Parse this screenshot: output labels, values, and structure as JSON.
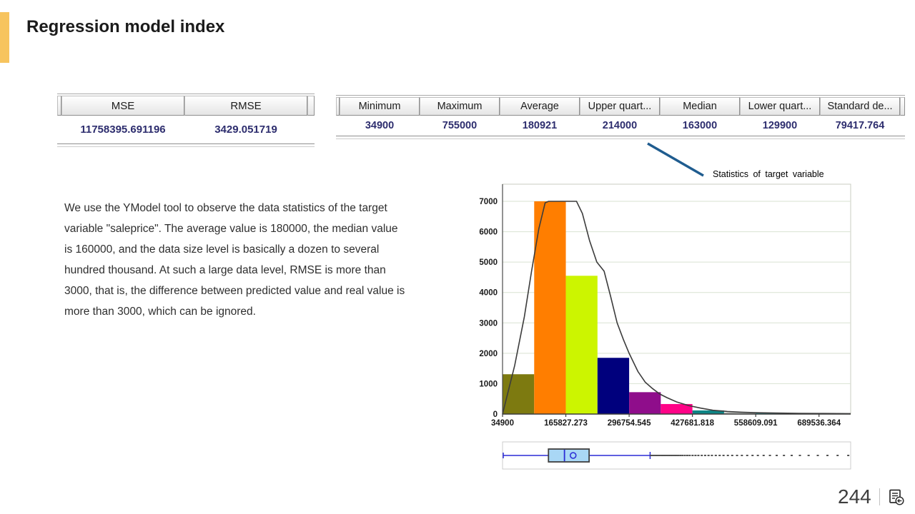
{
  "slide": {
    "title": "Regression model index",
    "page_number": "244",
    "accent_color": "#F7C45E"
  },
  "icons": {
    "footer_icon": "document-return-icon"
  },
  "mse_table": {
    "headers": [
      "MSE",
      "RMSE"
    ],
    "values": [
      "11758395.691196",
      "3429.051719"
    ]
  },
  "stats_table": {
    "headers": [
      "Minimum",
      "Maximum",
      "Average",
      "Upper quart...",
      "Median",
      "Lower quart...",
      "Standard de..."
    ],
    "values": [
      "34900",
      "755000",
      "180921",
      "214000",
      "163000",
      "129900",
      "79417.764"
    ]
  },
  "paragraph": "We use the YModel tool to observe the data statistics of the target variable \"saleprice\". The average value is 180000, the median value is 160000, and the data size level is basically a dozen to several hundred thousand. At such a large data level, RMSE is more than 3000, that is, the difference between predicted value and real value is more than 3000, which can be ignored.",
  "annotation": {
    "label": "Statistics of target variable",
    "line_color": "#1F5C8F"
  },
  "chart_data": {
    "type": "bar",
    "subtype": "histogram-with-density-curve-and-boxplot",
    "title": "",
    "xlabel": "",
    "ylabel": "",
    "x_axis": {
      "min": 34900,
      "max": 755000,
      "tick_labels": [
        "34900",
        "165827.273",
        "296754.545",
        "427681.818",
        "558609.091",
        "689536.364"
      ],
      "tick_values": [
        34900,
        165827.273,
        296754.545,
        427681.818,
        558609.091,
        689536.364
      ]
    },
    "y_axis": {
      "min": 0,
      "max": 7000,
      "tick_step": 1000
    },
    "grid": true,
    "gridline_color": "#d9e2d2",
    "bin_width": 65463.636,
    "bins": [
      {
        "start": 34900,
        "value": 1310,
        "color": "#7d7a10"
      },
      {
        "start": 100363.6,
        "value": 7000,
        "color": "#ff7e00"
      },
      {
        "start": 165827.3,
        "value": 4550,
        "color": "#ccf500"
      },
      {
        "start": 231290.9,
        "value": 1850,
        "color": "#00007d"
      },
      {
        "start": 296754.5,
        "value": 720,
        "color": "#8f0d8b"
      },
      {
        "start": 362218.2,
        "value": 330,
        "color": "#ff0387"
      },
      {
        "start": 427681.8,
        "value": 120,
        "color": "#0e8585"
      },
      {
        "start": 493145.5,
        "value": 55,
        "color": "#b9bdb9"
      },
      {
        "start": 558609.1,
        "value": 45,
        "color": "#16cbcf"
      },
      {
        "start": 624072.7,
        "value": 15,
        "color": "#9da8a2"
      },
      {
        "start": 689536.4,
        "value": 10,
        "color": "#8a8a8a"
      }
    ],
    "curve_color": "#3c3c3c",
    "curve": [
      [
        34900,
        0
      ],
      [
        60000,
        1600
      ],
      [
        80000,
        3200
      ],
      [
        95000,
        4700
      ],
      [
        110000,
        6100
      ],
      [
        123000,
        6950
      ],
      [
        130000,
        7000
      ],
      [
        188000,
        7000
      ],
      [
        200000,
        6600
      ],
      [
        215000,
        5700
      ],
      [
        230000,
        5000
      ],
      [
        245000,
        4700
      ],
      [
        258000,
        3900
      ],
      [
        272000,
        3000
      ],
      [
        285000,
        2450
      ],
      [
        296754,
        2000
      ],
      [
        315000,
        1400
      ],
      [
        330000,
        1050
      ],
      [
        345000,
        840
      ],
      [
        360000,
        660
      ],
      [
        375000,
        540
      ],
      [
        395000,
        400
      ],
      [
        420000,
        280
      ],
      [
        445000,
        195
      ],
      [
        470000,
        125
      ],
      [
        500000,
        85
      ],
      [
        530000,
        60
      ],
      [
        565000,
        42
      ],
      [
        600000,
        32
      ],
      [
        650000,
        24
      ],
      [
        700000,
        18
      ],
      [
        755000,
        14
      ]
    ],
    "boxplot": {
      "min": 34900,
      "q1": 129900,
      "median": 163000,
      "mean": 180921,
      "q3": 214000,
      "whisker_high": 340150,
      "box_fill": "#a9d7f5",
      "line_color": "#2b2bd6",
      "outliers": [
        342000,
        345000,
        348500,
        352000,
        355000,
        358000,
        361500,
        365000,
        368000,
        371500,
        375000,
        378500,
        382000,
        386000,
        390000,
        394000,
        398000,
        402500,
        407000,
        412000,
        417000,
        422000,
        428000,
        434000,
        440000,
        447000,
        454000,
        461000,
        468000,
        476000,
        484000,
        492000,
        501000,
        510000,
        520000,
        530000,
        541000,
        552000,
        563000,
        575000,
        588000,
        602000,
        617000,
        633000,
        650000,
        668000,
        687000,
        707000,
        728000,
        750000
      ]
    }
  }
}
